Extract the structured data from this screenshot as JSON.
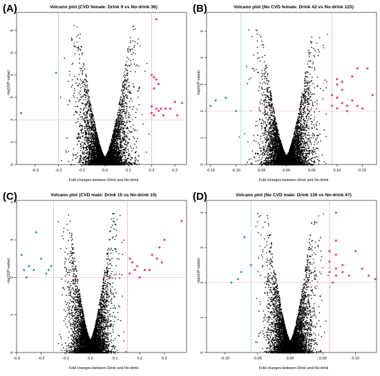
{
  "colors": {
    "point": "#000000",
    "up": "#e8408a",
    "down": "#3aa6b5",
    "thresh_up": "#f2a3c3",
    "thresh_down": "#8fd0d8",
    "thresh_p": "#f2b8b8"
  },
  "chart_data": [
    {
      "type": "scatter",
      "panel_label": "(A)",
      "title": "Volcano plot (CVD female: Drink 9 vs No-drink 36)",
      "xlabel": "Fold changes between Drink and No-drink",
      "ylabel": "-log10(P-value)",
      "xlim": [
        -0.38,
        0.35
      ],
      "ylim": [
        0,
        6.8
      ],
      "xticks": [
        "-0.3",
        "-0.2",
        "-0.1",
        "0.0",
        "0.1",
        "0.2",
        "0.3"
      ],
      "xtick_values": [
        -0.3,
        -0.2,
        -0.1,
        0.0,
        0.1,
        0.2,
        0.3
      ],
      "yticks": [
        "0",
        "1",
        "2",
        "3",
        "4",
        "5",
        "6"
      ],
      "ytick_values": [
        0,
        1,
        2,
        3,
        4,
        5,
        6
      ],
      "fc_threshold": 0.2,
      "p_threshold": 2,
      "spread": 0.07,
      "highlight_up": [
        [
          0.22,
          6.5
        ],
        [
          0.2,
          4.0
        ],
        [
          0.21,
          3.9
        ],
        [
          0.22,
          3.8
        ],
        [
          0.23,
          3.6
        ],
        [
          0.21,
          3.4
        ],
        [
          0.2,
          2.6
        ],
        [
          0.22,
          2.5
        ],
        [
          0.24,
          2.5
        ],
        [
          0.26,
          2.5
        ],
        [
          0.28,
          2.5
        ],
        [
          0.23,
          2.4
        ],
        [
          0.3,
          2.8
        ],
        [
          0.33,
          2.75
        ],
        [
          0.21,
          2.2
        ],
        [
          0.25,
          2.2
        ],
        [
          0.31,
          2.2
        ],
        [
          0.2,
          2.3
        ]
      ],
      "highlight_down": [
        [
          -0.21,
          4.1
        ],
        [
          -0.36,
          2.3
        ]
      ]
    },
    {
      "type": "scatter",
      "panel_label": "(B)",
      "title": "Volcano plot (No CVD female: Drink 42 vs No-drink 123)",
      "xlabel": "Fold changes between Drink and No-drink",
      "ylabel": "-log10(P-value)",
      "xlim": [
        -0.158,
        0.178
      ],
      "ylim": [
        0,
        5.7
      ],
      "xticks": [
        "-0.15",
        "-0.10",
        "-0.05",
        "0.00",
        "0.05",
        "0.10",
        "0.15"
      ],
      "xtick_values": [
        -0.15,
        -0.1,
        -0.05,
        0.0,
        0.05,
        0.1,
        0.15
      ],
      "yticks": [
        "0",
        "1",
        "2",
        "3",
        "4",
        "5"
      ],
      "ytick_values": [
        0,
        1,
        2,
        3,
        4,
        5
      ],
      "fc_threshold": 0.09,
      "p_threshold": 2,
      "spread": 0.032,
      "highlight_up": [
        [
          0.1,
          3.2
        ],
        [
          0.11,
          3.1
        ],
        [
          0.13,
          3.3
        ],
        [
          0.14,
          3.6
        ],
        [
          0.16,
          3.6
        ],
        [
          0.17,
          2.6
        ],
        [
          0.09,
          2.6
        ],
        [
          0.1,
          2.5
        ],
        [
          0.11,
          2.3
        ],
        [
          0.13,
          2.4
        ],
        [
          0.12,
          2.2
        ],
        [
          0.1,
          2.1
        ],
        [
          0.14,
          2.2
        ],
        [
          0.15,
          2.1
        ],
        [
          0.11,
          2.8
        ],
        [
          0.12,
          2.0
        ],
        [
          0.09,
          2.2
        ],
        [
          0.1,
          3.0
        ]
      ],
      "highlight_down": [
        [
          -0.14,
          2.4
        ],
        [
          -0.15,
          2.2
        ],
        [
          -0.12,
          2.5
        ],
        [
          -0.1,
          2.0
        ]
      ]
    },
    {
      "type": "scatter",
      "panel_label": "(C)",
      "title": "Volcano plot (CVD male: Drink 15 vs No-drink 15)",
      "xlabel": "Fold changes between Drink and No-drink",
      "ylabel": "-log10(P-value)",
      "xlim": [
        -0.3,
        0.39
      ],
      "ylim": [
        0,
        4.05
      ],
      "xticks": [
        "-0.3",
        "-0.2",
        "-0.1",
        "0.0",
        "0.1",
        "0.2",
        "0.3"
      ],
      "xtick_values": [
        -0.3,
        -0.2,
        -0.1,
        0.0,
        0.1,
        0.2,
        0.3
      ],
      "yticks": [
        "0",
        "1",
        "2",
        "3",
        "4"
      ],
      "ytick_values": [
        0,
        1,
        2,
        3,
        4
      ],
      "fc_threshold": 0.15,
      "p_threshold": 2,
      "spread": 0.055,
      "highlight_up": [
        [
          0.37,
          3.5
        ],
        [
          0.3,
          3.0
        ],
        [
          0.28,
          2.8
        ],
        [
          0.25,
          2.6
        ],
        [
          0.27,
          2.5
        ],
        [
          0.29,
          2.4
        ],
        [
          0.16,
          2.5
        ],
        [
          0.17,
          2.4
        ],
        [
          0.19,
          2.3
        ],
        [
          0.22,
          2.2
        ],
        [
          0.16,
          2.1
        ],
        [
          0.2,
          2.0
        ],
        [
          0.24,
          2.2
        ],
        [
          0.18,
          2.2
        ]
      ],
      "highlight_down": [
        [
          -0.22,
          3.2
        ],
        [
          -0.28,
          2.6
        ],
        [
          -0.2,
          2.5
        ],
        [
          -0.27,
          2.2
        ],
        [
          -0.25,
          2.3
        ],
        [
          -0.16,
          2.3
        ],
        [
          -0.18,
          2.1
        ],
        [
          -0.23,
          2.2
        ],
        [
          -0.26,
          2.0
        ],
        [
          -0.17,
          2.2
        ]
      ]
    },
    {
      "type": "scatter",
      "panel_label": "(D)",
      "title": "Volcano plot (No CVD male: Drink 136 vs No-drink 47)",
      "xlabel": "Fold changes between Drink and No-drink",
      "ylabel": "-log10(P-value)",
      "xlim": [
        -0.128,
        0.132
      ],
      "ylim": [
        0,
        4.35
      ],
      "xticks": [
        "-0.10",
        "-0.05",
        "0.00",
        "0.05",
        "0.10"
      ],
      "xtick_values": [
        -0.1,
        -0.05,
        0.0,
        0.05,
        0.1
      ],
      "yticks": [
        "0",
        "1",
        "2",
        "3",
        "4"
      ],
      "ytick_values": [
        0,
        1,
        2,
        3,
        4
      ],
      "fc_threshold": 0.06,
      "p_threshold": 2,
      "spread": 0.022,
      "highlight_up": [
        [
          0.07,
          4.0
        ],
        [
          0.07,
          3.2
        ],
        [
          0.06,
          2.9
        ],
        [
          0.07,
          2.8
        ],
        [
          0.06,
          2.6
        ],
        [
          0.08,
          2.5
        ],
        [
          0.07,
          2.4
        ],
        [
          0.06,
          2.3
        ],
        [
          0.08,
          2.3
        ],
        [
          0.1,
          2.9
        ],
        [
          0.11,
          2.4
        ],
        [
          0.12,
          2.2
        ],
        [
          0.13,
          2.1
        ],
        [
          0.07,
          2.2
        ],
        [
          0.065,
          2.0
        ],
        [
          0.09,
          2.2
        ]
      ],
      "highlight_down": [
        [
          -0.07,
          3.3
        ],
        [
          -0.06,
          2.5
        ],
        [
          -0.08,
          2.1
        ],
        [
          -0.075,
          2.3
        ],
        [
          -0.09,
          2.0
        ]
      ]
    }
  ]
}
